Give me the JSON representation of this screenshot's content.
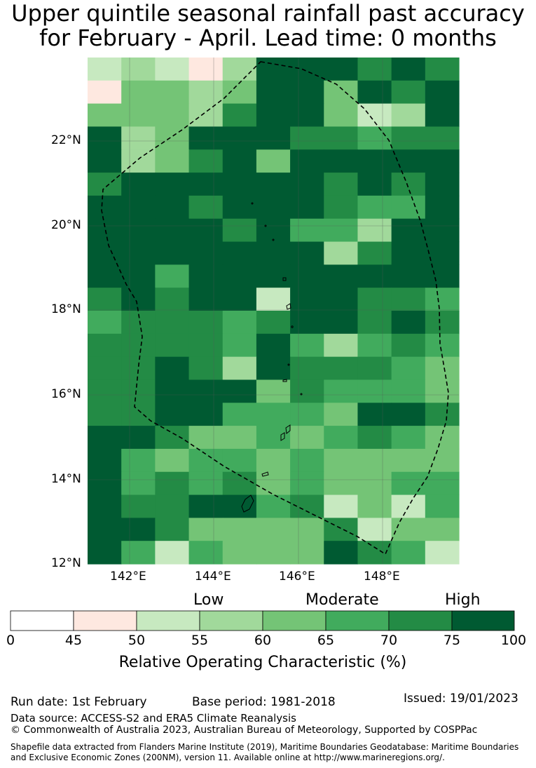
{
  "title_line1": "Upper quintile seasonal rainfall past accuracy",
  "title_line2": "for February - April. Lead time: 0 months",
  "map": {
    "lon_labels": [
      "142°E",
      "144°E",
      "146°E",
      "148°E"
    ],
    "lat_labels": [
      "22°N",
      "20°N",
      "18°N",
      "16°N",
      "14°N",
      "12°N"
    ],
    "grid_rows_top_to_bottom": [
      [
        2,
        3,
        2,
        1,
        3,
        7,
        7,
        7,
        6,
        7,
        6
      ],
      [
        1,
        4,
        4,
        3,
        4,
        7,
        7,
        4,
        7,
        6,
        7
      ],
      [
        4,
        4,
        4,
        3,
        6,
        7,
        7,
        4,
        2,
        3,
        7
      ],
      [
        7,
        3,
        4,
        7,
        7,
        7,
        6,
        6,
        5,
        6,
        6
      ],
      [
        7,
        3,
        4,
        6,
        7,
        4,
        7,
        7,
        7,
        7,
        7
      ],
      [
        6,
        7,
        7,
        7,
        7,
        7,
        7,
        6,
        7,
        6,
        7
      ],
      [
        7,
        7,
        7,
        6,
        7,
        7,
        7,
        6,
        5,
        5,
        7
      ],
      [
        7,
        7,
        7,
        7,
        6,
        7,
        5,
        5,
        3,
        7,
        7
      ],
      [
        7,
        7,
        7,
        7,
        7,
        7,
        7,
        3,
        6,
        7,
        7
      ],
      [
        7,
        7,
        5,
        7,
        7,
        7,
        7,
        7,
        7,
        7,
        7
      ],
      [
        6,
        7,
        6,
        7,
        7,
        2,
        7,
        7,
        6,
        6,
        5
      ],
      [
        5,
        6,
        6,
        6,
        5,
        6,
        7,
        7,
        6,
        7,
        6
      ],
      [
        6,
        6,
        6,
        6,
        5,
        7,
        5,
        3,
        5,
        6,
        5
      ],
      [
        6,
        6,
        7,
        6,
        3,
        7,
        6,
        6,
        6,
        5,
        4
      ],
      [
        6,
        6,
        7,
        7,
        7,
        4,
        6,
        5,
        5,
        5,
        4
      ],
      [
        6,
        6,
        7,
        7,
        5,
        5,
        5,
        4,
        7,
        7,
        6
      ],
      [
        7,
        7,
        6,
        4,
        4,
        5,
        4,
        5,
        6,
        5,
        4
      ],
      [
        7,
        5,
        4,
        5,
        5,
        4,
        5,
        4,
        4,
        4,
        4
      ],
      [
        7,
        5,
        6,
        5,
        6,
        4,
        5,
        4,
        4,
        5,
        5
      ],
      [
        7,
        6,
        6,
        7,
        7,
        5,
        6,
        2,
        4,
        2,
        5
      ],
      [
        7,
        7,
        6,
        4,
        4,
        4,
        4,
        6,
        2,
        4,
        4
      ],
      [
        7,
        5,
        2,
        5,
        4,
        4,
        4,
        7,
        6,
        5,
        2
      ]
    ]
  },
  "colorbar": {
    "category_words": [
      "Low",
      "Moderate",
      "High"
    ],
    "ticks": [
      "0",
      "45",
      "50",
      "55",
      "60",
      "65",
      "70",
      "75",
      "100"
    ],
    "colors": [
      "#ffffff",
      "#fee8e0",
      "#c7e9c0",
      "#a1d99b",
      "#74c476",
      "#41ab5d",
      "#238b45",
      "#005a32"
    ],
    "label": "Relative Operating Characteristic (%)"
  },
  "footer": {
    "run_date": "Run date: 1st February",
    "base_period": "Base period: 1981-2018",
    "issued": "Issued: 19/01/2023",
    "data_source": "Data source: ACCESS-S2 and ERA5 Climate Reanalysis",
    "copyright": "© Commonwealth of Australia 2023, Australian Bureau of Meteorology, Supported by COSPPac",
    "shapefile_line1": "Shapefile data extracted from Flanders Marine Institute (2019), Maritime Boundaries Geodatabase: Maritime Boundaries",
    "shapefile_line2": "and Exclusive Economic Zones (200NM), version 11. Available online at http://www.marineregions.org/."
  }
}
